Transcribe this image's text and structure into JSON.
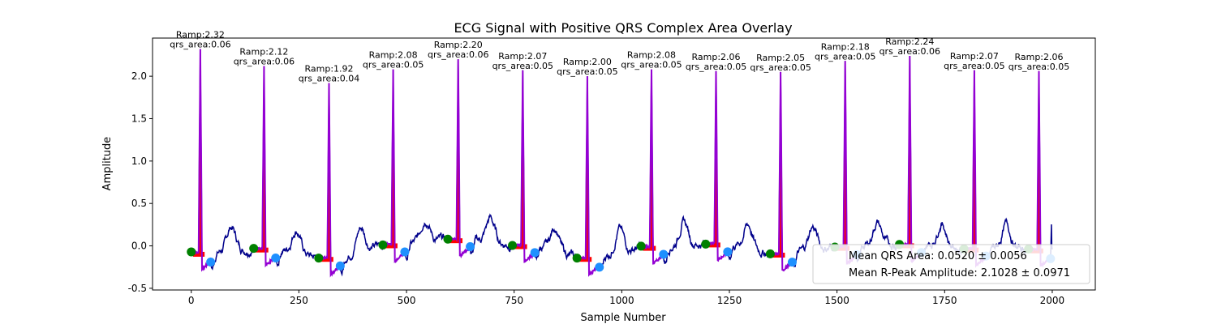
{
  "chart_data": {
    "type": "line",
    "title": "ECG Signal with Positive QRS Complex Area Overlay",
    "xlabel": "Sample Number",
    "ylabel": "Amplitude",
    "xlim": [
      -90,
      2100
    ],
    "ylim": [
      -0.52,
      2.45
    ],
    "xticks": [
      0,
      250,
      500,
      750,
      1000,
      1250,
      1500,
      1750,
      2000
    ],
    "yticks": [
      -0.5,
      0.0,
      0.5,
      1.0,
      1.5,
      2.0
    ],
    "grid": false,
    "colors": {
      "signal": "#00008b",
      "qrs_segment": "#9400d3",
      "qrs_area": "#ff0000",
      "onset_marker": "#008000",
      "offset_marker": "#1e90ff"
    },
    "beats": [
      {
        "onset": 0,
        "peak": 21,
        "offset": 45,
        "base": -0.08,
        "ramp": 2.32,
        "ramp_label": "Ramp:2.32",
        "area_label": "qrs_area:0.06"
      },
      {
        "onset": 145,
        "peak": 169,
        "offset": 196,
        "base": -0.03,
        "ramp": 2.12,
        "ramp_label": "Ramp:2.12",
        "area_label": "qrs_area:0.06"
      },
      {
        "onset": 296,
        "peak": 320,
        "offset": 346,
        "base": -0.14,
        "ramp": 1.92,
        "ramp_label": "Ramp:1.92",
        "area_label": "qrs_area:0.04"
      },
      {
        "onset": 445,
        "peak": 469,
        "offset": 496,
        "base": 0.02,
        "ramp": 2.08,
        "ramp_label": "Ramp:2.08",
        "area_label": "qrs_area:0.05"
      },
      {
        "onset": 596,
        "peak": 620,
        "offset": 648,
        "base": 0.08,
        "ramp": 2.2,
        "ramp_label": "Ramp:2.20",
        "area_label": "qrs_area:0.06"
      },
      {
        "onset": 746,
        "peak": 770,
        "offset": 798,
        "base": 0.01,
        "ramp": 2.07,
        "ramp_label": "Ramp:2.07",
        "area_label": "qrs_area:0.05"
      },
      {
        "onset": 896,
        "peak": 920,
        "offset": 948,
        "base": -0.14,
        "ramp": 2.0,
        "ramp_label": "Ramp:2.00",
        "area_label": "qrs_area:0.05"
      },
      {
        "onset": 1045,
        "peak": 1069,
        "offset": 1097,
        "base": -0.01,
        "ramp": 2.08,
        "ramp_label": "Ramp:2.08",
        "area_label": "qrs_area:0.05"
      },
      {
        "onset": 1195,
        "peak": 1219,
        "offset": 1246,
        "base": 0.03,
        "ramp": 2.06,
        "ramp_label": "Ramp:2.06",
        "area_label": "qrs_area:0.05"
      },
      {
        "onset": 1345,
        "peak": 1369,
        "offset": 1396,
        "base": -0.09,
        "ramp": 2.05,
        "ramp_label": "Ramp:2.05",
        "area_label": "qrs_area:0.05"
      },
      {
        "onset": 1495,
        "peak": 1519,
        "offset": 1546,
        "base": -0.01,
        "ramp": 2.18,
        "ramp_label": "Ramp:2.18",
        "area_label": "qrs_area:0.05"
      },
      {
        "onset": 1645,
        "peak": 1669,
        "offset": 1696,
        "base": 0.02,
        "ramp": 2.24,
        "ramp_label": "Ramp:2.24",
        "area_label": "qrs_area:0.06"
      },
      {
        "onset": 1795,
        "peak": 1819,
        "offset": 1846,
        "base": -0.03,
        "ramp": 2.07,
        "ramp_label": "Ramp:2.07",
        "area_label": "qrs_area:0.05"
      },
      {
        "onset": 1945,
        "peak": 1969,
        "offset": 1996,
        "base": -0.04,
        "ramp": 2.06,
        "ramp_label": "Ramp:2.06",
        "area_label": "qrs_area:0.05"
      }
    ],
    "legend": {
      "placement": "lower-right",
      "entries": [
        "Mean QRS Area: 0.0520 ± 0.0056",
        "Mean R-Peak Amplitude: 2.1028 ± 0.0971"
      ]
    }
  }
}
